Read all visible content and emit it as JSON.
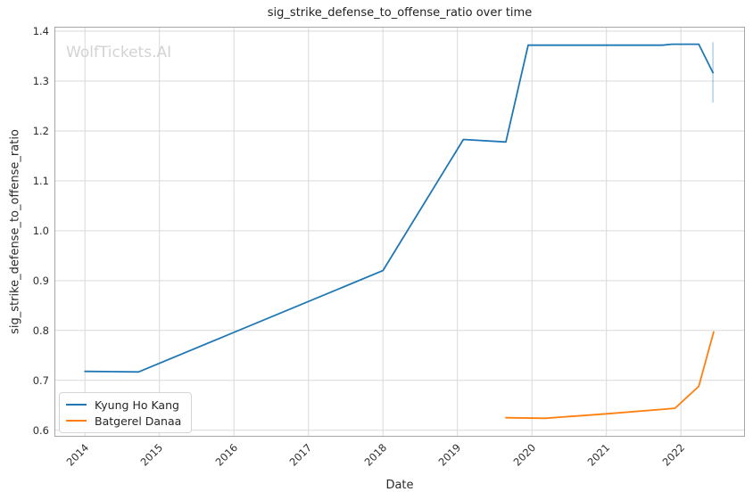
{
  "chart_data": {
    "type": "line",
    "title": "sig_strike_defense_to_offense_ratio over time",
    "xlabel": "Date",
    "ylabel": "sig_strike_defense_to_offense_ratio",
    "watermark": "WolfTickets.AI",
    "grid": true,
    "legend_position": "lower left",
    "x_axis": {
      "ticks": [
        "2014",
        "2015",
        "2016",
        "2017",
        "2018",
        "2019",
        "2020",
        "2021",
        "2022"
      ],
      "range": [
        2013.59,
        2022.86
      ],
      "tick_rotation_deg": 45
    },
    "y_axis": {
      "ticks": [
        "0.6",
        "0.7",
        "0.8",
        "0.9",
        "1.0",
        "1.1",
        "1.2",
        "1.3",
        "1.4"
      ],
      "range": [
        0.587,
        1.409
      ]
    },
    "series": [
      {
        "name": "Kyung Ho Kang",
        "color": "#1f77b4",
        "points": [
          [
            2014.0,
            0.718
          ],
          [
            2014.72,
            0.717
          ],
          [
            2018.0,
            0.92
          ],
          [
            2019.08,
            1.183
          ],
          [
            2019.65,
            1.178
          ],
          [
            2019.95,
            1.372
          ],
          [
            2021.75,
            1.372
          ],
          [
            2021.88,
            1.374
          ],
          [
            2022.24,
            1.374
          ],
          [
            2022.43,
            1.317
          ]
        ],
        "error_bar": {
          "x": 2022.43,
          "low": 1.257,
          "high": 1.378
        }
      },
      {
        "name": "Batgerel Danaa",
        "color": "#ff7f0e",
        "points": [
          [
            2019.65,
            0.625
          ],
          [
            2020.18,
            0.624
          ],
          [
            2021.0,
            0.633
          ],
          [
            2021.92,
            0.644
          ],
          [
            2022.24,
            0.688
          ],
          [
            2022.44,
            0.797
          ]
        ]
      }
    ]
  },
  "colors": {
    "background": "#ffffff",
    "grid": "#d9d9d9",
    "spine": "#a6a6a6",
    "text": "#2b2b2b",
    "watermark": "#d3d3d3",
    "error_bar_opacity": 0.35
  }
}
